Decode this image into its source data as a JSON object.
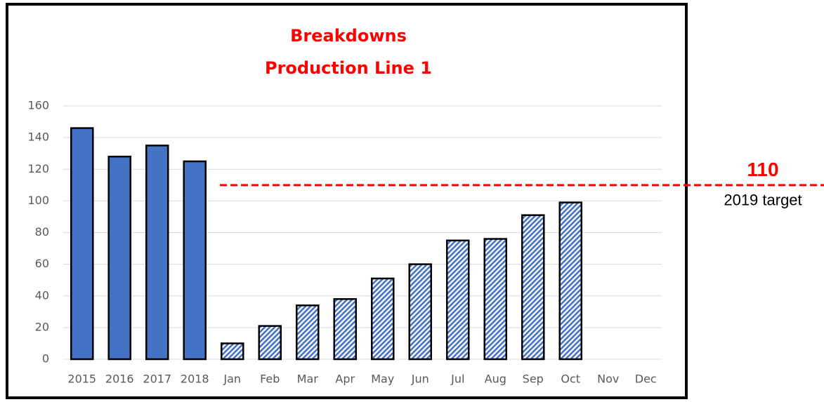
{
  "chart_data": {
    "type": "bar",
    "title": [
      "Breakdowns",
      "Production Line 1"
    ],
    "categories": [
      "2015",
      "2016",
      "2017",
      "2018",
      "Jan",
      "Feb",
      "Mar",
      "Apr",
      "May",
      "Jun",
      "Jul",
      "Aug",
      "Sep",
      "Oct",
      "Nov",
      "Dec"
    ],
    "values": [
      146,
      128,
      135,
      125,
      10,
      21,
      34,
      38,
      51,
      60,
      75,
      76,
      91,
      99,
      null,
      null
    ],
    "pattern": [
      "solid",
      "solid",
      "solid",
      "solid",
      "hatch",
      "hatch",
      "hatch",
      "hatch",
      "hatch",
      "hatch",
      "hatch",
      "hatch",
      "hatch",
      "hatch",
      "hatch",
      "hatch"
    ],
    "color": "#4472c4",
    "ylim": [
      0,
      160
    ],
    "yticks": [
      0,
      20,
      40,
      60,
      80,
      100,
      120,
      140,
      160
    ],
    "grid": true,
    "target": 110,
    "target_label": "2019 target",
    "target_color": "#ff0000"
  }
}
